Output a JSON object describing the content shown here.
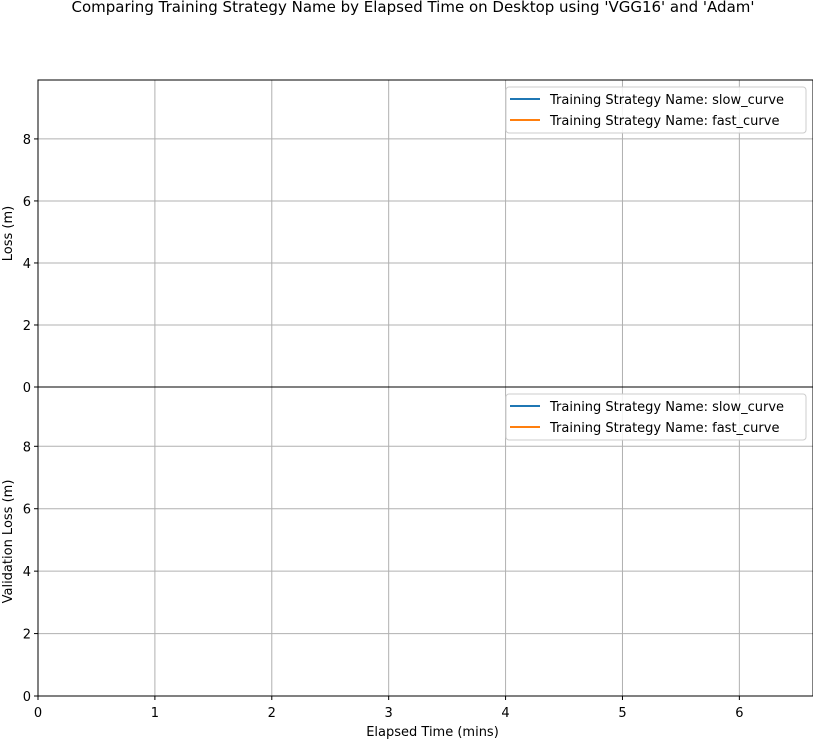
{
  "figure": {
    "title": "Comparing Training Strategy Name by Elapsed Time on Desktop using 'VGG16' and 'Adam'"
  },
  "colors": {
    "series_1": "#1f77b4",
    "series_2": "#ff7f0e",
    "grid": "#b0b0b0",
    "axes": "#000000"
  },
  "chart_data": [
    {
      "type": "line",
      "ylabel": "Loss (m)",
      "xlabel": "",
      "xlim": [
        0,
        6.63
      ],
      "ylim": [
        0,
        9.9
      ],
      "xticks": [
        "0",
        "1",
        "2",
        "3",
        "4",
        "5",
        "6"
      ],
      "yticks": [
        "0",
        "2",
        "4",
        "6",
        "8"
      ],
      "grid": true,
      "legend_position": "top-right",
      "series": [
        {
          "name": "Training Strategy Name: slow_curve",
          "x": [],
          "y": []
        },
        {
          "name": "Training Strategy Name: fast_curve",
          "x": [],
          "y": []
        }
      ]
    },
    {
      "type": "line",
      "ylabel": "Validation Loss (m)",
      "xlabel": "Elapsed Time (mins)",
      "xlim": [
        0,
        6.63
      ],
      "ylim": [
        0,
        9.9
      ],
      "xticks": [
        "0",
        "1",
        "2",
        "3",
        "4",
        "5",
        "6"
      ],
      "yticks": [
        "0",
        "2",
        "4",
        "6",
        "8"
      ],
      "grid": true,
      "legend_position": "top-right",
      "series": [
        {
          "name": "Training Strategy Name: slow_curve",
          "x": [],
          "y": []
        },
        {
          "name": "Training Strategy Name: fast_curve",
          "x": [],
          "y": []
        }
      ]
    }
  ]
}
